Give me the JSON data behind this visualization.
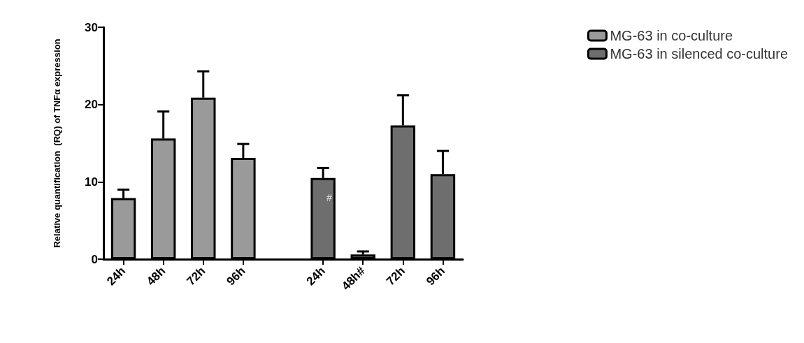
{
  "chart_data": {
    "type": "bar",
    "ylabel": "Relative quantification  (RQ) of TNFα expression",
    "categories": [
      "24h",
      "48h",
      "72h",
      "96h",
      null,
      "24h",
      "48h#",
      "72h",
      "96h"
    ],
    "series": [
      {
        "name": "MG-63 in co-culture",
        "color": "#9a9a9a",
        "values": [
          7.9,
          15.6,
          20.9,
          13.1,
          null,
          null,
          null,
          null,
          null
        ],
        "errors": [
          [
            7.9,
            9.0
          ],
          [
            15.6,
            19.1
          ],
          [
            20.9,
            24.3
          ],
          [
            13.1,
            14.9
          ],
          null,
          null,
          null,
          null,
          null
        ]
      },
      {
        "name": "MG-63 in silenced co-culture",
        "color": "#6e6e6e",
        "values": [
          null,
          null,
          null,
          null,
          null,
          10.5,
          0.6,
          17.3,
          11.0
        ],
        "errors": [
          null,
          null,
          null,
          null,
          null,
          [
            10.5,
            11.8
          ],
          [
            0.6,
            1.0
          ],
          [
            17.3,
            21.2
          ],
          [
            11.0,
            14.0
          ]
        ]
      }
    ],
    "annotations": [
      "#"
    ],
    "ylim": [
      0,
      30
    ],
    "yticks": [
      0,
      10,
      20,
      30
    ],
    "grid": false,
    "legend": "top right"
  }
}
